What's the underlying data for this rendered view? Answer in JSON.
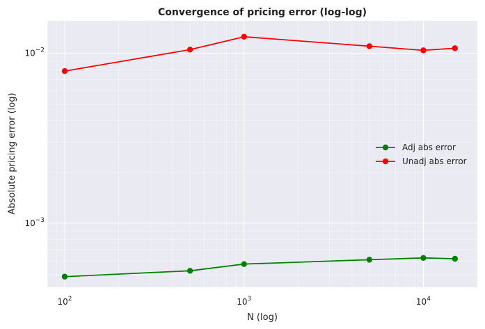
{
  "chart_data": {
    "type": "line",
    "title": "Convergence of pricing error (log-log)",
    "xlabel": "N (log)",
    "ylabel": "Absolute pricing error (log)",
    "xscale": "log",
    "yscale": "log",
    "xlim": [
      80,
      20000
    ],
    "ylim": [
      0.00042,
      0.0155
    ],
    "x_ticks": [
      {
        "value": 100,
        "base": "10",
        "exp": "2"
      },
      {
        "value": 1000,
        "base": "10",
        "exp": "3"
      },
      {
        "value": 10000,
        "base": "10",
        "exp": "4"
      }
    ],
    "y_ticks": [
      {
        "value": 0.001,
        "base": "10",
        "exp": "−3"
      },
      {
        "value": 0.01,
        "base": "10",
        "exp": "−2"
      }
    ],
    "grid": true,
    "legend_position": "center-right",
    "x": [
      100,
      500,
      1000,
      5000,
      10000,
      15000
    ],
    "series": [
      {
        "name": "Adj abs error",
        "color": "#008000",
        "marker": "circle",
        "values": [
          0.000485,
          0.000525,
          0.000575,
          0.00061,
          0.000625,
          0.000618
        ]
      },
      {
        "name": "Unadj abs error",
        "color": "#ff0000",
        "marker": "circle",
        "values": [
          0.00785,
          0.0105,
          0.0125,
          0.011,
          0.0104,
          0.0107
        ]
      }
    ],
    "background_color": "#eaeaf2",
    "grid_color": "#ffffff"
  }
}
